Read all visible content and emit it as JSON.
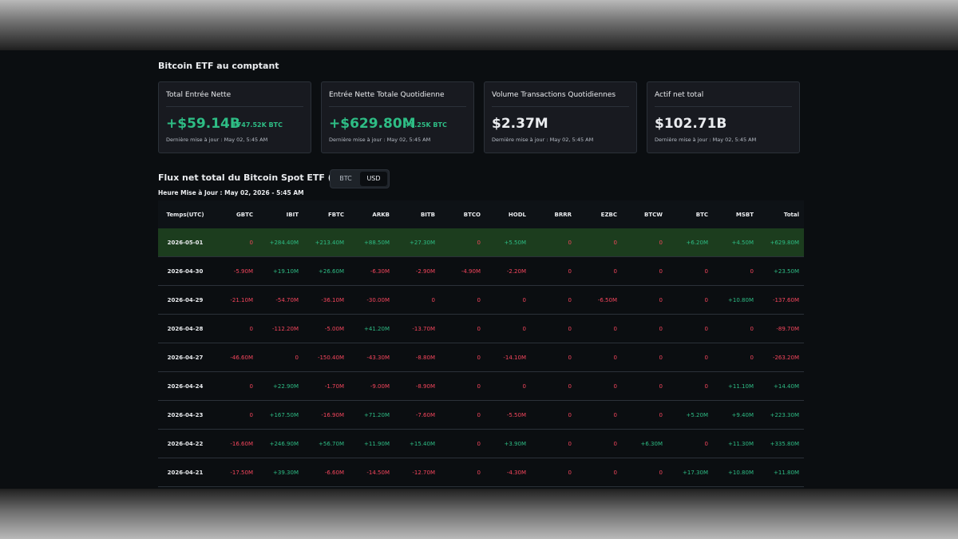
{
  "section_title": "Bitcoin ETF au comptant",
  "cards": [
    {
      "label": "Total Entrée Nette",
      "value": "+$59.14B",
      "sub": "+747.52K BTC",
      "updated": "Dernière mise à jour : May 02, 5:45 AM",
      "tone": "green"
    },
    {
      "label": "Entrée Nette Totale Quotidienne",
      "value": "+$629.80M",
      "sub": "+8.25K BTC",
      "updated": "Dernière mise à jour : May 02, 5:45 AM",
      "tone": "green"
    },
    {
      "label": "Volume Transactions Quotidiennes",
      "value": "$2.37M",
      "sub": "",
      "updated": "Dernière mise à jour : May 02, 5:45 AM",
      "tone": "white"
    },
    {
      "label": "Actif net total",
      "value": "$102.71B",
      "sub": "",
      "updated": "Dernière mise à jour : May 02, 5:45 AM",
      "tone": "white"
    }
  ],
  "flux": {
    "title": "Flux net total du Bitcoin Spot ETF (USD)",
    "toggle": {
      "options": [
        "BTC",
        "USD"
      ],
      "selected": "USD"
    },
    "update_line": "Heure Mise à Jour : May 02, 2026 - 5:45 AM"
  },
  "table": {
    "headers": [
      "Temps(UTC)",
      "GBTC",
      "IBIT",
      "FBTC",
      "ARKB",
      "BITB",
      "BTCO",
      "HODL",
      "BRRR",
      "EZBC",
      "BTCW",
      "BTC",
      "MSBT",
      "Total"
    ],
    "rows": [
      [
        "2026-05-01",
        "0",
        "+284.40M",
        "+213.40M",
        "+88.50M",
        "+27.30M",
        "0",
        "+5.50M",
        "0",
        "0",
        "0",
        "+6.20M",
        "+4.50M",
        "+629.80M"
      ],
      [
        "2026-04-30",
        "-5.90M",
        "+19.10M",
        "+26.60M",
        "-6.30M",
        "-2.90M",
        "-4.90M",
        "-2.20M",
        "0",
        "0",
        "0",
        "0",
        "0",
        "+23.50M"
      ],
      [
        "2026-04-29",
        "-21.10M",
        "-54.70M",
        "-36.10M",
        "-30.00M",
        "0",
        "0",
        "0",
        "0",
        "-6.50M",
        "0",
        "0",
        "+10.80M",
        "-137.60M"
      ],
      [
        "2026-04-28",
        "0",
        "-112.20M",
        "-5.00M",
        "+41.20M",
        "-13.70M",
        "0",
        "0",
        "0",
        "0",
        "0",
        "0",
        "0",
        "-89.70M"
      ],
      [
        "2026-04-27",
        "-46.60M",
        "0",
        "-150.40M",
        "-43.30M",
        "-8.80M",
        "0",
        "-14.10M",
        "0",
        "0",
        "0",
        "0",
        "0",
        "-263.20M"
      ],
      [
        "2026-04-24",
        "0",
        "+22.90M",
        "-1.70M",
        "-9.00M",
        "-8.90M",
        "0",
        "0",
        "0",
        "0",
        "0",
        "0",
        "+11.10M",
        "+14.40M"
      ],
      [
        "2026-04-23",
        "0",
        "+167.50M",
        "-16.90M",
        "+71.20M",
        "-7.60M",
        "0",
        "-5.50M",
        "0",
        "0",
        "0",
        "+5.20M",
        "+9.40M",
        "+223.30M"
      ],
      [
        "2026-04-22",
        "-16.60M",
        "+246.90M",
        "+56.70M",
        "+11.90M",
        "+15.40M",
        "0",
        "+3.90M",
        "0",
        "0",
        "+6.30M",
        "0",
        "+11.30M",
        "+335.80M"
      ],
      [
        "2026-04-21",
        "-17.50M",
        "+39.30M",
        "-6.60M",
        "-14.50M",
        "-12.70M",
        "0",
        "-4.30M",
        "0",
        "0",
        "0",
        "+17.30M",
        "+10.80M",
        "+11.80M"
      ]
    ],
    "highlight_row": 0
  },
  "colors": {
    "positive": "#2ebd85",
    "negative": "#f6465d",
    "highlight": "#1c3d1e"
  }
}
